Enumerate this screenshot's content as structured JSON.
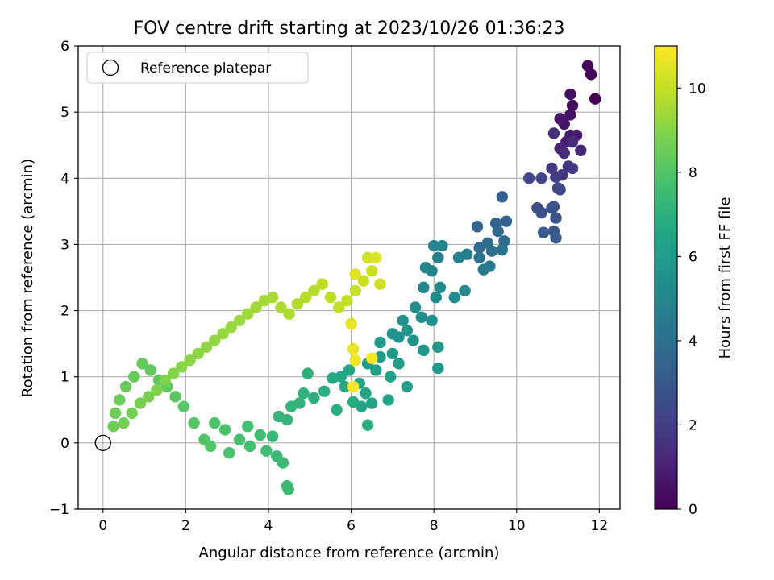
{
  "chart_data": {
    "type": "scatter",
    "title": "FOV centre drift starting at 2023/10/26 01:36:23",
    "xlabel": "Angular distance from reference (arcmin)",
    "ylabel": "Rotation from reference (arcmin)",
    "xlim": [
      -0.6,
      12.5
    ],
    "ylim": [
      -1.0,
      6.0
    ],
    "xticks": [
      0,
      2,
      4,
      6,
      8,
      10,
      12
    ],
    "yticks": [
      -1,
      0,
      1,
      2,
      3,
      4,
      5,
      6
    ],
    "grid": true,
    "legend": {
      "placement": "top-left",
      "entries": [
        "Reference platepar"
      ]
    },
    "reference_point": {
      "x": 0,
      "y": 0
    },
    "colorbar": {
      "label": "Hours from first FF file",
      "range": [
        0,
        11
      ],
      "ticks": [
        0,
        2,
        4,
        6,
        8,
        10
      ],
      "colormap": "viridis"
    },
    "series": [
      {
        "points": [
          [
            11.9,
            5.2,
            0.0
          ],
          [
            11.8,
            5.57,
            0.1
          ],
          [
            11.72,
            5.7,
            0.2
          ],
          [
            11.35,
            5.1,
            0.3
          ],
          [
            11.3,
            5.27,
            0.4
          ],
          [
            11.3,
            4.96,
            0.5
          ],
          [
            11.15,
            4.82,
            0.6
          ],
          [
            11.05,
            4.9,
            0.7
          ],
          [
            11.3,
            4.65,
            0.8
          ],
          [
            11.45,
            4.65,
            0.9
          ],
          [
            11.2,
            4.55,
            1.0
          ],
          [
            11.05,
            4.45,
            1.1
          ],
          [
            11.55,
            4.42,
            1.2
          ],
          [
            11.15,
            4.38,
            1.3
          ],
          [
            11.35,
            4.55,
            1.4
          ],
          [
            10.9,
            4.68,
            1.5
          ],
          [
            11.25,
            4.18,
            1.6
          ],
          [
            11.1,
            4.05,
            1.7
          ],
          [
            11.35,
            4.15,
            1.8
          ],
          [
            10.85,
            4.15,
            1.9
          ],
          [
            10.95,
            4.02,
            2.0
          ],
          [
            11.0,
            3.85,
            2.1
          ],
          [
            10.6,
            4.0,
            2.2
          ],
          [
            10.3,
            4.0,
            2.3
          ],
          [
            11.05,
            3.83,
            2.4
          ],
          [
            10.9,
            3.57,
            2.5
          ],
          [
            10.5,
            3.55,
            2.6
          ],
          [
            10.6,
            3.48,
            2.7
          ],
          [
            10.95,
            3.4,
            2.8
          ],
          [
            10.85,
            3.55,
            2.9
          ],
          [
            10.9,
            3.2,
            3.0
          ],
          [
            10.65,
            3.18,
            3.1
          ],
          [
            10.95,
            3.1,
            3.2
          ],
          [
            9.65,
            3.72,
            3.3
          ],
          [
            9.75,
            3.35,
            3.4
          ],
          [
            9.5,
            3.32,
            3.5
          ],
          [
            9.05,
            3.27,
            3.6
          ],
          [
            9.55,
            3.2,
            3.7
          ],
          [
            9.3,
            3.02,
            3.8
          ],
          [
            9.1,
            2.95,
            3.9
          ],
          [
            9.7,
            3.05,
            4.0
          ],
          [
            9.4,
            2.9,
            4.1
          ],
          [
            9.65,
            2.92,
            4.2
          ],
          [
            9.1,
            2.8,
            4.3
          ],
          [
            9.2,
            2.62,
            4.4
          ],
          [
            9.35,
            2.67,
            4.5
          ],
          [
            8.6,
            2.8,
            4.6
          ],
          [
            8.8,
            2.85,
            4.7
          ],
          [
            8.1,
            2.8,
            4.8
          ],
          [
            7.95,
            2.6,
            4.9
          ],
          [
            8.0,
            2.98,
            4.95
          ],
          [
            8.2,
            2.98,
            5.0
          ],
          [
            7.8,
            2.65,
            5.05
          ],
          [
            7.75,
            2.35,
            5.1
          ],
          [
            8.15,
            2.35,
            5.15
          ],
          [
            8.5,
            2.2,
            5.2
          ],
          [
            8.75,
            2.3,
            5.25
          ],
          [
            8.05,
            2.2,
            5.3
          ],
          [
            7.55,
            2.05,
            5.35
          ],
          [
            7.7,
            1.9,
            5.4
          ],
          [
            7.95,
            1.85,
            5.45
          ],
          [
            7.25,
            1.85,
            5.5
          ],
          [
            7.35,
            1.7,
            5.55
          ],
          [
            7.0,
            1.65,
            5.6
          ],
          [
            7.15,
            1.6,
            5.65
          ],
          [
            7.5,
            1.55,
            5.7
          ],
          [
            7.75,
            1.4,
            5.75
          ],
          [
            8.1,
            1.45,
            5.8
          ],
          [
            8.1,
            1.13,
            5.85
          ],
          [
            7.0,
            1.35,
            5.9
          ],
          [
            6.7,
            1.52,
            5.95
          ],
          [
            6.4,
            1.2,
            6.0
          ],
          [
            6.7,
            1.3,
            6.05
          ],
          [
            7.15,
            1.2,
            6.1
          ],
          [
            6.6,
            1.1,
            6.15
          ],
          [
            6.95,
            1.0,
            6.2
          ],
          [
            7.35,
            0.85,
            6.25
          ],
          [
            6.9,
            0.65,
            6.3
          ],
          [
            6.5,
            0.6,
            6.35
          ],
          [
            6.35,
            0.75,
            6.4
          ],
          [
            6.25,
            0.55,
            6.45
          ],
          [
            6.2,
            0.9,
            6.5
          ],
          [
            5.95,
            1.1,
            6.55
          ],
          [
            5.75,
            1.0,
            6.6
          ],
          [
            5.55,
            0.98,
            6.65
          ],
          [
            5.85,
            0.85,
            6.7
          ],
          [
            6.05,
            0.62,
            6.75
          ],
          [
            6.4,
            0.27,
            6.8
          ],
          [
            5.65,
            0.5,
            6.85
          ],
          [
            5.35,
            0.78,
            6.9
          ],
          [
            5.1,
            0.68,
            6.95
          ],
          [
            4.95,
            1.05,
            7.0
          ],
          [
            4.85,
            0.75,
            7.05
          ],
          [
            4.75,
            0.6,
            7.1
          ],
          [
            4.55,
            0.55,
            7.15
          ],
          [
            4.45,
            0.35,
            7.2
          ],
          [
            4.25,
            0.4,
            7.25
          ],
          [
            4.1,
            0.1,
            7.3
          ],
          [
            4.2,
            -0.2,
            7.35
          ],
          [
            4.45,
            -0.65,
            7.4
          ],
          [
            4.48,
            -0.7,
            7.45
          ],
          [
            4.35,
            -0.3,
            7.5
          ],
          [
            3.95,
            -0.12,
            7.55
          ],
          [
            3.8,
            0.12,
            7.6
          ],
          [
            3.55,
            -0.05,
            7.65
          ],
          [
            3.5,
            0.25,
            7.7
          ],
          [
            3.3,
            0.05,
            7.75
          ],
          [
            3.05,
            -0.15,
            7.8
          ],
          [
            2.95,
            0.2,
            7.85
          ],
          [
            2.7,
            0.3,
            7.9
          ],
          [
            2.45,
            0.05,
            7.95
          ],
          [
            2.6,
            -0.05,
            8.0
          ],
          [
            2.2,
            0.3,
            8.05
          ],
          [
            1.95,
            0.55,
            8.1
          ],
          [
            1.75,
            0.7,
            8.15
          ],
          [
            1.55,
            0.85,
            8.2
          ],
          [
            1.35,
            0.95,
            8.25
          ],
          [
            1.15,
            1.1,
            8.3
          ],
          [
            0.95,
            1.2,
            8.35
          ],
          [
            0.75,
            1.0,
            8.4
          ],
          [
            0.55,
            0.85,
            8.45
          ],
          [
            0.4,
            0.65,
            8.5
          ],
          [
            0.3,
            0.45,
            8.55
          ],
          [
            0.25,
            0.25,
            8.6
          ],
          [
            0.5,
            0.3,
            8.65
          ],
          [
            0.7,
            0.45,
            8.7
          ],
          [
            0.9,
            0.6,
            8.75
          ],
          [
            1.1,
            0.7,
            8.8
          ],
          [
            1.3,
            0.8,
            8.85
          ],
          [
            1.5,
            0.95,
            8.9
          ],
          [
            1.7,
            1.05,
            8.95
          ],
          [
            1.9,
            1.15,
            9.0
          ],
          [
            2.1,
            1.25,
            9.05
          ],
          [
            2.3,
            1.35,
            9.1
          ],
          [
            2.5,
            1.45,
            9.15
          ],
          [
            2.7,
            1.55,
            9.2
          ],
          [
            2.9,
            1.65,
            9.25
          ],
          [
            3.1,
            1.75,
            9.3
          ],
          [
            3.3,
            1.85,
            9.35
          ],
          [
            3.5,
            1.95,
            9.4
          ],
          [
            3.7,
            2.05,
            9.45
          ],
          [
            3.9,
            2.15,
            9.5
          ],
          [
            4.1,
            2.2,
            9.55
          ],
          [
            4.3,
            2.05,
            9.6
          ],
          [
            4.5,
            1.95,
            9.65
          ],
          [
            4.7,
            2.1,
            9.7
          ],
          [
            4.9,
            2.2,
            9.75
          ],
          [
            5.1,
            2.3,
            9.8
          ],
          [
            5.3,
            2.4,
            9.85
          ],
          [
            5.5,
            2.2,
            9.9
          ],
          [
            5.7,
            2.05,
            9.95
          ],
          [
            5.9,
            2.15,
            10.0
          ],
          [
            6.1,
            2.3,
            10.05
          ],
          [
            6.3,
            2.45,
            10.1
          ],
          [
            6.5,
            2.6,
            10.15
          ],
          [
            6.7,
            2.4,
            10.2
          ],
          [
            6.4,
            2.8,
            10.3
          ],
          [
            6.6,
            2.8,
            10.4
          ],
          [
            6.1,
            2.55,
            10.5
          ],
          [
            6.0,
            1.8,
            10.6
          ],
          [
            6.05,
            1.42,
            10.7
          ],
          [
            6.1,
            1.25,
            10.8
          ],
          [
            6.5,
            1.28,
            10.9
          ],
          [
            6.05,
            0.85,
            11.0
          ]
        ]
      }
    ]
  }
}
